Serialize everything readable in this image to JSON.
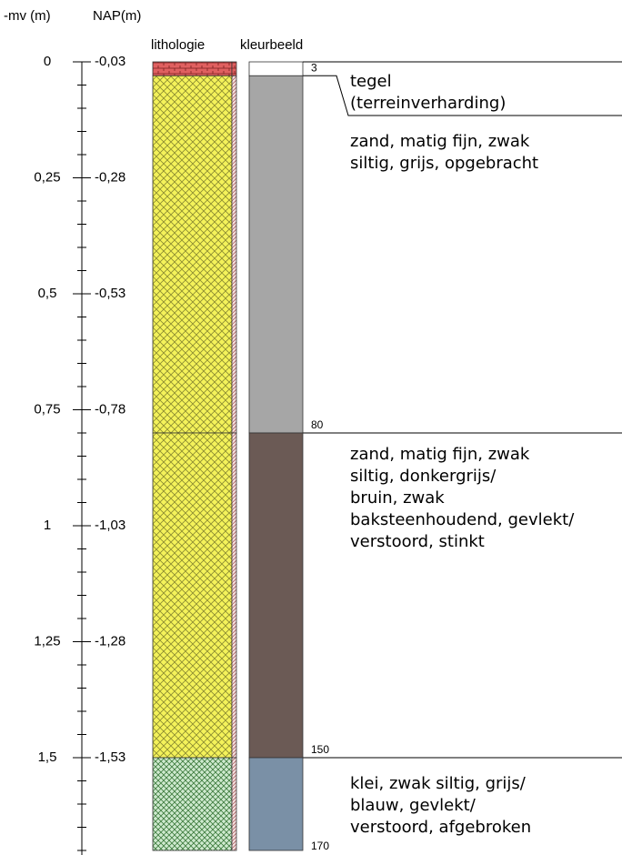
{
  "header": {
    "depth_label": "-mv (m)",
    "nap_label": "NAP(m)",
    "lithology_label": "lithologie",
    "color_label": "kleurbeeld"
  },
  "depth_ticks": [
    {
      "mv": "0",
      "nap": "-0,03"
    },
    {
      "mv": "0,25",
      "nap": "-0,28"
    },
    {
      "mv": "0,5",
      "nap": "-0,53"
    },
    {
      "mv": "0,75",
      "nap": "-0,78"
    },
    {
      "mv": "1",
      "nap": "-1,03"
    },
    {
      "mv": "1,25",
      "nap": "-1,28"
    },
    {
      "mv": "1,5",
      "nap": "-1,53"
    }
  ],
  "layers": [
    {
      "bottom": 3,
      "lines": [
        "tegel",
        "(terreinverharding)"
      ]
    },
    {
      "bottom": 80,
      "lines": [
        "zand, matig fijn, zwak",
        "siltig, grijs, opgebracht"
      ]
    },
    {
      "bottom": 150,
      "lines": [
        "zand, matig fijn, zwak",
        "siltig, donkergrijs/",
        "bruin, zwak",
        "baksteenhoudend, gevlekt/",
        "verstoord, stinkt"
      ]
    },
    {
      "bottom": 170,
      "lines": [
        "klei, zwak siltig, grijs/",
        "blauw, gevlekt/",
        "verstoord, afgebroken"
      ]
    }
  ]
}
